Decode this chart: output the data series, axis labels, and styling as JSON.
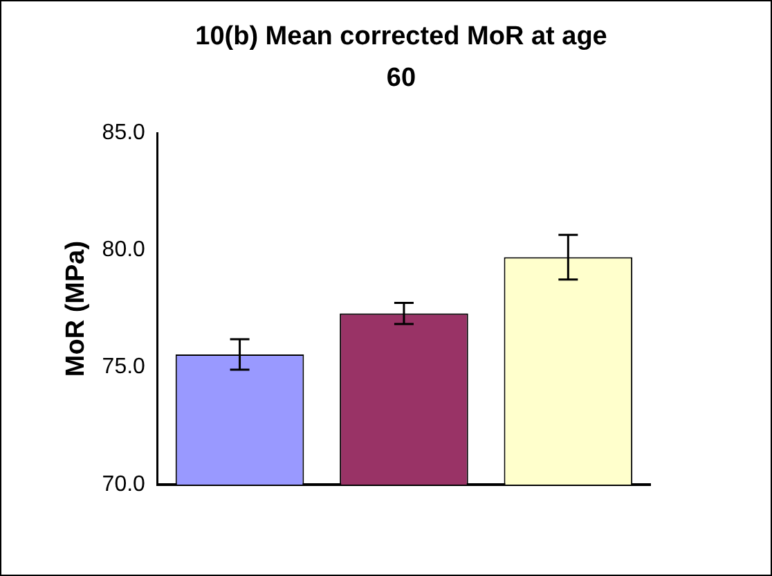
{
  "chart_data": {
    "type": "bar",
    "title": "10(b) Mean corrected MoR at age 60",
    "ylabel": "MoR (MPa)",
    "categories": [
      null,
      null,
      null
    ],
    "values": [
      75.55,
      77.3,
      79.7
    ],
    "colors": [
      "#9999ff",
      "#993366",
      "#ffffcc"
    ],
    "errors": [
      0.65,
      0.45,
      0.95
    ],
    "ylim": [
      70,
      85
    ],
    "yticks": [
      {
        "value": 70,
        "label": "70.0"
      },
      {
        "value": 75,
        "label": "75.0"
      },
      {
        "value": 80,
        "label": "80.0"
      },
      {
        "value": 85,
        "label": "85.0"
      }
    ],
    "grid": false,
    "legend": false
  }
}
